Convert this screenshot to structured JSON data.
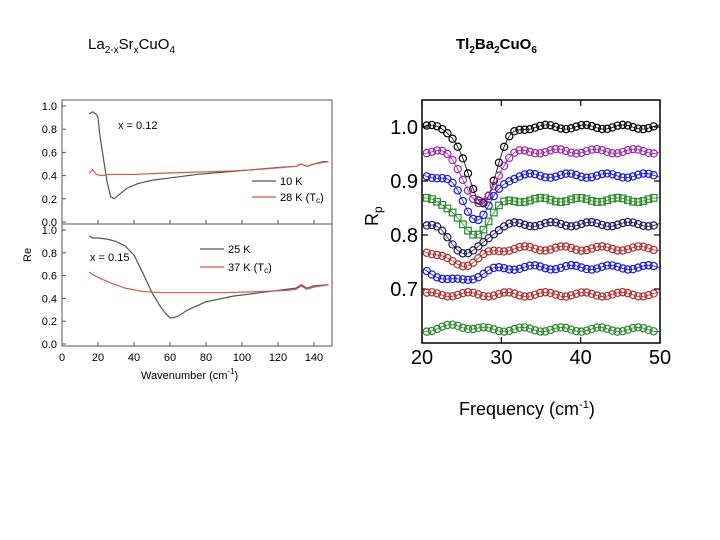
{
  "left_title": {
    "base1": "La",
    "sub1": "2-x",
    "base2": "Sr",
    "sub2": "x",
    "base3": "CuO",
    "sub3": "4"
  },
  "right_title": {
    "base1": "Tl",
    "sub1": "2",
    "base2": "Ba",
    "sub2": "2",
    "base3": "CuO",
    "sub3": "6"
  },
  "chart_data": [
    {
      "type": "line",
      "panel": "top",
      "annotation": "x = 0.12",
      "xlim": [
        0,
        150
      ],
      "ylim": [
        0,
        1.0
      ],
      "yticks": [
        "0.0",
        "0.2",
        "0.4",
        "0.6",
        "0.8",
        "1.0"
      ],
      "colors": {
        "cold": "#555555",
        "tc": "#d05a4a"
      },
      "legend": [
        {
          "label": "10 K",
          "color": "#555555"
        },
        {
          "label": "28 K (T",
          "sub": "c",
          "tail": ")",
          "color": "#d05a4a"
        }
      ],
      "series": [
        {
          "name": "10 K",
          "x": [
            15,
            17,
            19,
            20,
            21,
            23,
            25,
            27,
            29,
            32,
            36,
            42,
            50,
            60,
            75,
            90,
            105,
            120,
            130,
            133,
            136,
            140,
            145,
            148
          ],
          "y": [
            0.93,
            0.95,
            0.93,
            0.9,
            0.75,
            0.55,
            0.35,
            0.22,
            0.2,
            0.24,
            0.29,
            0.33,
            0.36,
            0.38,
            0.41,
            0.43,
            0.45,
            0.47,
            0.48,
            0.5,
            0.48,
            0.5,
            0.52,
            0.52
          ]
        },
        {
          "name": "28 K (Tc)",
          "x": [
            15,
            17,
            19,
            22,
            26,
            32,
            40,
            55,
            75,
            95,
            115,
            130,
            133,
            136,
            140,
            148
          ],
          "y": [
            0.42,
            0.45,
            0.41,
            0.4,
            0.41,
            0.41,
            0.41,
            0.42,
            0.43,
            0.44,
            0.46,
            0.48,
            0.5,
            0.48,
            0.5,
            0.52
          ]
        }
      ]
    },
    {
      "type": "line",
      "panel": "bottom",
      "annotation": "x = 0.15",
      "xlim": [
        0,
        150
      ],
      "ylim": [
        0,
        1.0
      ],
      "yticks": [
        "0.0",
        "0.2",
        "0.4",
        "0.6",
        "0.8",
        "1.0"
      ],
      "xticks": [
        "0",
        "20",
        "40",
        "60",
        "80",
        "100",
        "120",
        "140"
      ],
      "xlabel_base": "Wavenumber (cm",
      "xlabel_sup": "-1",
      "xlabel_tail": ")",
      "ylabel": "Re",
      "legend": [
        {
          "label": "25 K",
          "color": "#555555"
        },
        {
          "label": "37 K (T",
          "sub": "c",
          "tail": ")",
          "color": "#d05a4a"
        }
      ],
      "series": [
        {
          "name": "25 K",
          "x": [
            15,
            17,
            20,
            25,
            30,
            35,
            40,
            45,
            50,
            55,
            58,
            60,
            62,
            65,
            70,
            80,
            95,
            110,
            125,
            130,
            133,
            136,
            140,
            148
          ],
          "y": [
            0.95,
            0.93,
            0.93,
            0.92,
            0.9,
            0.86,
            0.78,
            0.62,
            0.45,
            0.32,
            0.26,
            0.23,
            0.23,
            0.25,
            0.3,
            0.37,
            0.42,
            0.45,
            0.48,
            0.49,
            0.52,
            0.49,
            0.51,
            0.52
          ]
        },
        {
          "name": "37 K (Tc)",
          "x": [
            15,
            18,
            22,
            28,
            35,
            45,
            55,
            70,
            90,
            110,
            125,
            130,
            133,
            136,
            140,
            148
          ],
          "y": [
            0.63,
            0.6,
            0.57,
            0.53,
            0.49,
            0.46,
            0.45,
            0.45,
            0.45,
            0.46,
            0.47,
            0.48,
            0.51,
            0.48,
            0.5,
            0.52
          ]
        }
      ]
    },
    {
      "type": "scatter",
      "panel": "right",
      "xlim": [
        20,
        50
      ],
      "ylim": [
        0.6,
        1.05
      ],
      "xticks": [
        "20",
        "30",
        "40",
        "50"
      ],
      "yticks": [
        "0.7",
        "0.8",
        "0.9",
        "1.0"
      ],
      "xlabel_base": "Frequency (cm",
      "xlabel_sup": "-1",
      "xlabel_tail": ")",
      "ylabel": "R",
      "ylabel_sub": "p",
      "series": [
        {
          "color": "#000000",
          "marker": "circle",
          "base": 1.0,
          "dip": 0.14,
          "center": 27.5,
          "width": 1.8
        },
        {
          "color": "#9a2aa8",
          "marker": "circle",
          "base": 0.955,
          "dip": 0.1,
          "center": 27.3,
          "width": 1.8
        },
        {
          "color": "#1a1acc",
          "marker": "circle",
          "base": 0.91,
          "dip": 0.08,
          "center": 27.0,
          "width": 1.8
        },
        {
          "color": "#2a8a2a",
          "marker": "square",
          "base": 0.865,
          "dip": 0.065,
          "center": 26.5,
          "width": 1.8
        },
        {
          "color": "#1a1a60",
          "marker": "circle",
          "base": 0.82,
          "dip": 0.055,
          "center": 25.8,
          "width": 2.0
        },
        {
          "color": "#b03030",
          "marker": "circle",
          "base": 0.775,
          "dip": 0.03,
          "center": 25.0,
          "width": 2.2
        },
        {
          "color": "#1a1acc",
          "marker": "circle",
          "base": 0.74,
          "dip": 0.025,
          "center": 24.5,
          "width": 2.5
        },
        {
          "color": "#b03030",
          "marker": "circle",
          "base": 0.69,
          "dip": 0.0,
          "center": 23.0,
          "width": 2.0
        },
        {
          "color": "#2a8a2a",
          "marker": "circle",
          "base": 0.625,
          "dip": -0.008,
          "center": 24.5,
          "width": 1.2
        }
      ]
    }
  ]
}
